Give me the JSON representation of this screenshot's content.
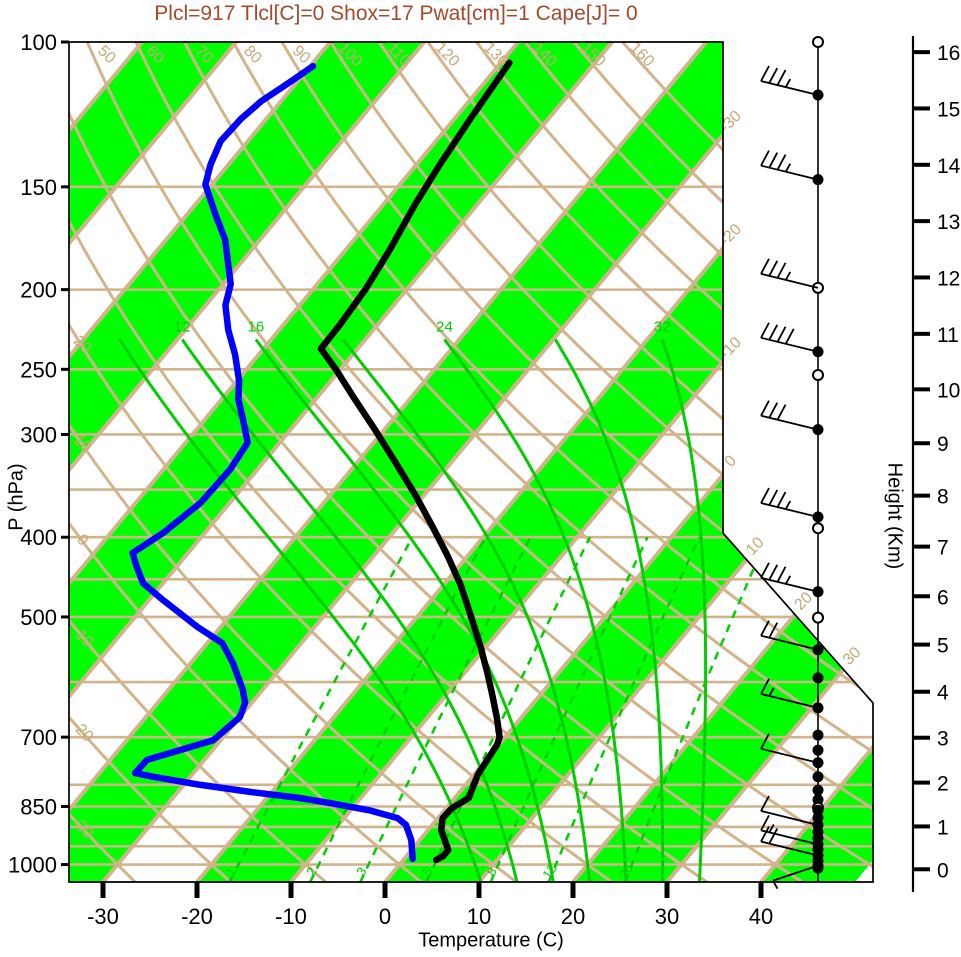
{
  "title": {
    "text": "Plcl=917 Tlcl[C]=0 Shox=17 Pwat[cm]=1 Cape[J]= 0"
  },
  "axes": {
    "x_label": "Temperature (C)",
    "y_left_label": "P (hPa)",
    "y_right_label": "Height (Km)",
    "pressure_ticks_hpa": [
      100,
      150,
      200,
      250,
      300,
      400,
      500,
      700,
      850,
      1000
    ],
    "temp_ticks_c": [
      -30,
      -20,
      -10,
      0,
      10,
      20,
      30,
      40
    ],
    "height_ticks_km": [
      0,
      1,
      2,
      3,
      4,
      5,
      6,
      7,
      8,
      9,
      10,
      11,
      12,
      13,
      14,
      15,
      16
    ]
  },
  "chart_data": {
    "type": "skewt",
    "description": "Skew-T log-P thermodynamic sounding diagram with temperature (black) and dewpoint (blue) profiles plus wind barb staff",
    "background": {
      "pressure_gridlines_hpa": [
        150,
        200,
        250,
        300,
        350,
        400,
        450,
        500,
        600,
        700,
        800,
        850,
        900,
        950,
        1000
      ],
      "isotherms_c": {
        "min": -120,
        "max": 40,
        "step": 10,
        "right_edge_labels": [
          -30,
          -20,
          -10,
          0
        ],
        "diagonal_edge_labels": [
          10,
          20,
          30
        ]
      },
      "dry_adiabats_c": {
        "min": -40,
        "max": 160,
        "step": 10,
        "top_labels": [
          50,
          60,
          70,
          80,
          90,
          100,
          110,
          120,
          130,
          140,
          150,
          160
        ],
        "left_edge_labels": [
          20,
          10,
          0,
          -10,
          -20,
          -30
        ]
      },
      "moist_adiabats_c": {
        "values": [
          8,
          12,
          16,
          20,
          24,
          28,
          32
        ],
        "labeled": [
          12,
          16,
          24,
          32
        ]
      },
      "mixing_ratio_g_kg": {
        "values": [
          1,
          2,
          3,
          5,
          8,
          12,
          20
        ],
        "labeled": [
          1,
          2,
          3,
          5,
          8,
          12,
          20
        ]
      },
      "green_band_start_temps_c": [
        -120,
        -100,
        -80,
        -60,
        -40,
        -20,
        0,
        20,
        40
      ]
    },
    "temperature_profile_p_t": [
      [
        106,
        -59.1
      ],
      [
        124,
        -58.3
      ],
      [
        141,
        -57.5
      ],
      [
        158,
        -56.6
      ],
      [
        179,
        -55.3
      ],
      [
        200,
        -54.4
      ],
      [
        221,
        -54.0
      ],
      [
        236,
        -53.9
      ],
      [
        250,
        -50.5
      ],
      [
        272,
        -45.8
      ],
      [
        296,
        -41.0
      ],
      [
        324,
        -36.0
      ],
      [
        355,
        -31.0
      ],
      [
        387,
        -26.5
      ],
      [
        420,
        -22.3
      ],
      [
        457,
        -18.2
      ],
      [
        497,
        -14.5
      ],
      [
        541,
        -10.8
      ],
      [
        583,
        -7.7
      ],
      [
        622,
        -5.1
      ],
      [
        663,
        -2.6
      ],
      [
        700,
        -0.6
      ],
      [
        715,
        -0.2
      ],
      [
        746,
        0.1
      ],
      [
        778,
        0.4
      ],
      [
        830,
        1.5
      ],
      [
        854,
        0.6
      ],
      [
        878,
        0.5
      ],
      [
        908,
        1.4
      ],
      [
        939,
        2.9
      ],
      [
        960,
        3.9
      ],
      [
        977,
        3.9
      ],
      [
        987,
        3.5
      ]
    ],
    "dewpoint_profile_p_t": [
      [
        107,
        -79.7
      ],
      [
        113,
        -81.0
      ],
      [
        118,
        -82.1
      ],
      [
        124,
        -82.7
      ],
      [
        132,
        -82.9
      ],
      [
        141,
        -81.9
      ],
      [
        149,
        -80.7
      ],
      [
        162,
        -77.0
      ],
      [
        174,
        -73.7
      ],
      [
        197,
        -69.2
      ],
      [
        209,
        -67.9
      ],
      [
        224,
        -65.4
      ],
      [
        240,
        -62.5
      ],
      [
        258,
        -59.8
      ],
      [
        272,
        -58.2
      ],
      [
        288,
        -55.9
      ],
      [
        307,
        -53.4
      ],
      [
        331,
        -52.9
      ],
      [
        363,
        -53.1
      ],
      [
        395,
        -54.4
      ],
      [
        418,
        -55.9
      ],
      [
        435,
        -54.2
      ],
      [
        455,
        -52.1
      ],
      [
        477,
        -48.5
      ],
      [
        514,
        -42.5
      ],
      [
        538,
        -38.4
      ],
      [
        569,
        -35.5
      ],
      [
        613,
        -32.1
      ],
      [
        636,
        -30.7
      ],
      [
        662,
        -30.0
      ],
      [
        706,
        -30.8
      ],
      [
        726,
        -33.5
      ],
      [
        746,
        -36.1
      ],
      [
        774,
        -36.2
      ],
      [
        782,
        -34.0
      ],
      [
        800,
        -28.2
      ],
      [
        816,
        -22.3
      ],
      [
        830,
        -16.5
      ],
      [
        842,
        -12.8
      ],
      [
        859,
        -8.0
      ],
      [
        878,
        -4.3
      ],
      [
        895,
        -2.8
      ],
      [
        934,
        -0.9
      ],
      [
        984,
        0.9
      ]
    ],
    "wind_barbs": [
      {
        "p": 100,
        "kt": 0,
        "open": true
      },
      {
        "p": 116,
        "kt": 35
      },
      {
        "p": 147,
        "kt": 35
      },
      {
        "p": 199,
        "kt": 35,
        "open": true
      },
      {
        "p": 238,
        "kt": 40
      },
      {
        "p": 254,
        "kt": 0,
        "open": true
      },
      {
        "p": 296,
        "kt": 30
      },
      {
        "p": 378,
        "kt": 35
      },
      {
        "p": 390,
        "kt": 0,
        "open": true
      },
      {
        "p": 466,
        "kt": 35
      },
      {
        "p": 501,
        "kt": 0,
        "open": true
      },
      {
        "p": 548,
        "kt": 20
      },
      {
        "p": 593,
        "kt": 0
      },
      {
        "p": 645,
        "kt": 15
      },
      {
        "p": 696,
        "kt": 0
      },
      {
        "p": 726,
        "kt": 0
      },
      {
        "p": 752,
        "kt": 10
      },
      {
        "p": 782,
        "kt": 0
      },
      {
        "p": 812,
        "kt": 0
      },
      {
        "p": 834,
        "kt": 0
      },
      {
        "p": 853,
        "kt": 0,
        "open": true
      },
      {
        "p": 859,
        "kt": 0
      },
      {
        "p": 877,
        "kt": 0
      },
      {
        "p": 895,
        "kt": 10
      },
      {
        "p": 913,
        "kt": 0
      },
      {
        "p": 929,
        "kt": 0
      },
      {
        "p": 945,
        "kt": 15
      },
      {
        "p": 959,
        "kt": 0
      },
      {
        "p": 975,
        "kt": 20
      },
      {
        "p": 989,
        "kt": 0
      },
      {
        "p": 1003,
        "kt": 5,
        "down": true
      },
      {
        "p": 1010,
        "kt": 0
      }
    ]
  },
  "colors": {
    "tan_lines": "#D2B48C",
    "tan_labels": "#C9A876",
    "green_fill": "#00FF00",
    "green_lines": "#00CE00",
    "temperature_curve": "#000000",
    "dewpoint_curve": "#0000FF",
    "title_text": "#A5492B",
    "axis": "#000000"
  }
}
